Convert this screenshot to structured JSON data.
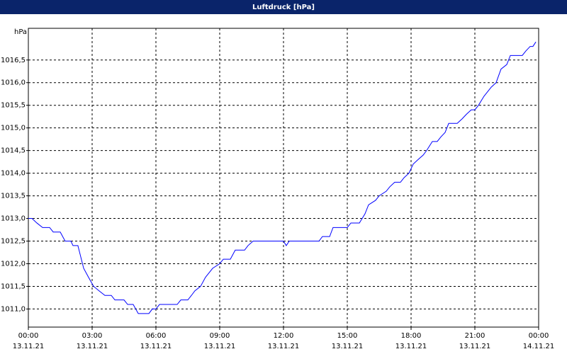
{
  "chart_data": {
    "type": "line",
    "title": "Luftdruck [hPa]",
    "y_label": "hPa",
    "x": [
      0,
      0.17,
      0.4,
      0.67,
      1,
      1.17,
      1.5,
      1.73,
      2,
      2.1,
      2.33,
      2.6,
      2.83,
      3.07,
      3.33,
      3.6,
      3.9,
      4.07,
      4.5,
      4.67,
      4.93,
      5.17,
      5.67,
      5.83,
      6,
      6.17,
      7,
      7.17,
      7.5,
      7.67,
      7.83,
      8.1,
      8.33,
      8.67,
      9,
      9.17,
      9.5,
      9.73,
      10.17,
      10.33,
      10.57,
      12,
      12.13,
      12.27,
      13.67,
      13.83,
      14.17,
      14.33,
      15,
      15.17,
      15.57,
      15.83,
      16,
      16.33,
      16.5,
      16.83,
      17,
      17.23,
      17.5,
      17.67,
      17.9,
      18.1,
      18.33,
      18.57,
      18.73,
      19,
      19.23,
      19.4,
      19.6,
      19.77,
      20.17,
      20.4,
      20.6,
      20.83,
      21,
      21.17,
      21.43,
      21.77,
      22,
      22.23,
      22.5,
      22.67,
      23.23,
      23.4,
      23.6,
      23.73,
      23.87
    ],
    "series": [
      {
        "name": "Luftdruck",
        "color": "#0000ff",
        "values": [
          1013.0,
          1013.0,
          1012.9,
          1012.8,
          1012.8,
          1012.7,
          1012.7,
          1012.5,
          1012.5,
          1012.4,
          1012.4,
          1011.9,
          1011.7,
          1011.5,
          1011.4,
          1011.3,
          1011.3,
          1011.2,
          1011.2,
          1011.1,
          1011.1,
          1010.9,
          1010.9,
          1011.0,
          1011.0,
          1011.1,
          1011.1,
          1011.2,
          1011.2,
          1011.3,
          1011.4,
          1011.5,
          1011.7,
          1011.9,
          1012.0,
          1012.1,
          1012.1,
          1012.3,
          1012.3,
          1012.4,
          1012.5,
          1012.5,
          1012.4,
          1012.5,
          1012.5,
          1012.6,
          1012.6,
          1012.8,
          1012.8,
          1012.9,
          1012.9,
          1013.1,
          1013.3,
          1013.4,
          1013.5,
          1013.6,
          1013.7,
          1013.8,
          1013.8,
          1013.9,
          1014.0,
          1014.2,
          1014.3,
          1014.4,
          1014.5,
          1014.7,
          1014.7,
          1014.8,
          1014.9,
          1015.1,
          1015.1,
          1015.2,
          1015.3,
          1015.4,
          1015.4,
          1015.5,
          1015.7,
          1015.9,
          1016.0,
          1016.3,
          1016.4,
          1016.6,
          1016.6,
          1016.7,
          1016.8,
          1016.8,
          1016.9
        ]
      }
    ],
    "xlim": [
      0,
      24
    ],
    "xticks": [
      {
        "value": 0,
        "label": "00:00",
        "date": "13.11.21"
      },
      {
        "value": 3,
        "label": "03:00",
        "date": "13.11.21"
      },
      {
        "value": 6,
        "label": "06:00",
        "date": "13.11.21"
      },
      {
        "value": 9,
        "label": "09:00",
        "date": "13.11.21"
      },
      {
        "value": 12,
        "label": "12:00",
        "date": "13.11.21"
      },
      {
        "value": 15,
        "label": "15:00",
        "date": "13.11.21"
      },
      {
        "value": 18,
        "label": "18:00",
        "date": "13.11.21"
      },
      {
        "value": 21,
        "label": "21:00",
        "date": "13.11.21"
      },
      {
        "value": 24,
        "label": "00:00",
        "date": "14.11.21"
      }
    ],
    "ylim": [
      1010.6,
      1017.2
    ],
    "yticks": [
      {
        "value": 1011,
        "label": "1011,0"
      },
      {
        "value": 1011.5,
        "label": "1011,5"
      },
      {
        "value": 1012,
        "label": "1012,0"
      },
      {
        "value": 1012.5,
        "label": "1012,5"
      },
      {
        "value": 1013,
        "label": "1013,0"
      },
      {
        "value": 1013.5,
        "label": "1013,5"
      },
      {
        "value": 1014,
        "label": "1014,0"
      },
      {
        "value": 1014.5,
        "label": "1014,5"
      },
      {
        "value": 1015,
        "label": "1015,0"
      },
      {
        "value": 1015.5,
        "label": "1015,5"
      },
      {
        "value": 1016,
        "label": "1016,0"
      },
      {
        "value": 1016.5,
        "label": "1016,5"
      }
    ],
    "grid": true
  }
}
